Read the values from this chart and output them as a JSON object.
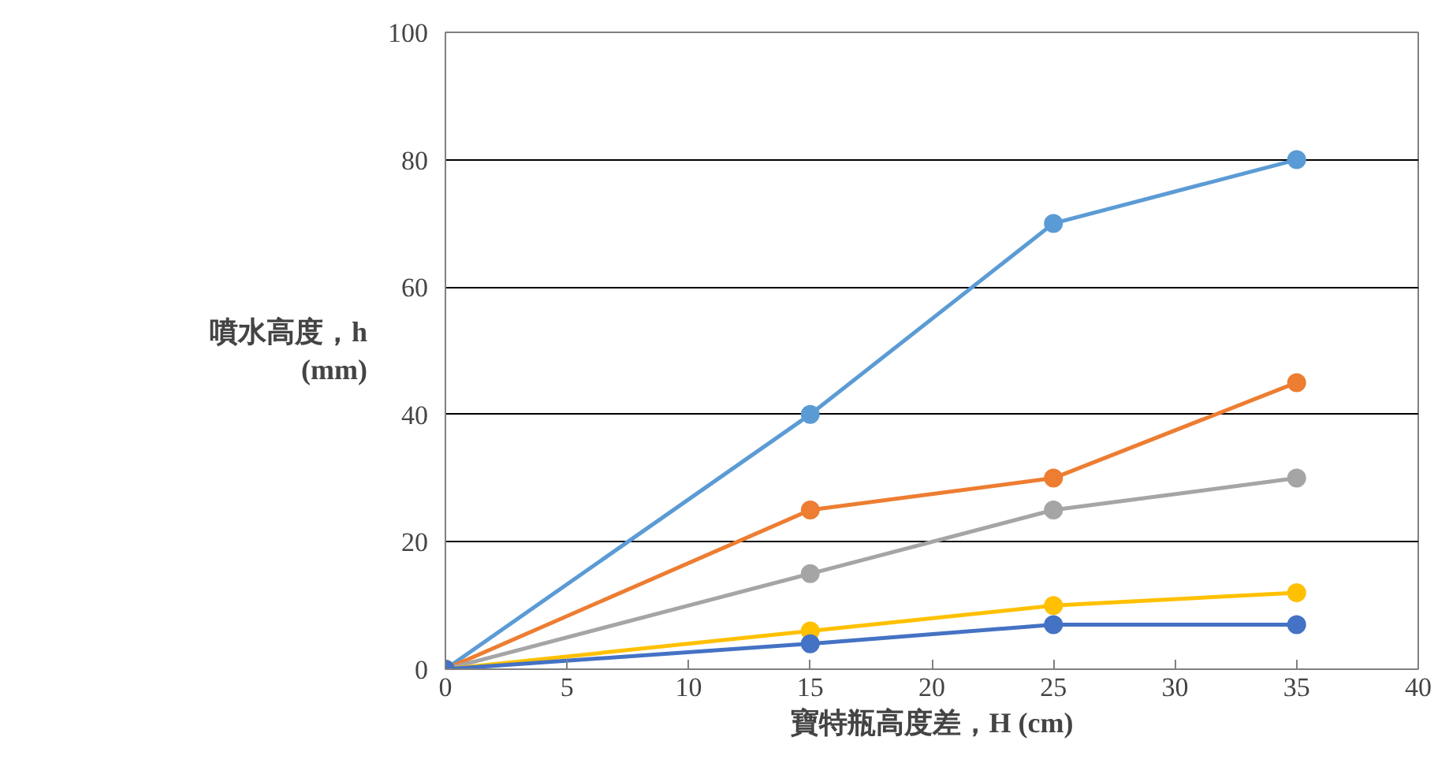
{
  "chart_data": {
    "type": "line",
    "xlabel": "寶特瓶高度差，H (cm)",
    "ylabel": "噴水高度，h\n(mm)",
    "x": [
      0,
      15,
      25,
      35
    ],
    "series": [
      {
        "color": "#5b9bd5",
        "values": [
          0,
          40,
          70,
          80
        ]
      },
      {
        "color": "#ed7d31",
        "values": [
          0,
          25,
          30,
          45
        ]
      },
      {
        "color": "#a5a5a5",
        "values": [
          0,
          15,
          25,
          30
        ]
      },
      {
        "color": "#ffc000",
        "values": [
          0,
          6,
          10,
          12
        ]
      },
      {
        "color": "#4472c4",
        "values": [
          0,
          4,
          7,
          7
        ]
      }
    ],
    "xlim": [
      0,
      40
    ],
    "xticks": [
      0,
      5,
      10,
      15,
      20,
      25,
      30,
      35,
      40
    ],
    "ylim": [
      0,
      100
    ],
    "yticks": [
      0,
      20,
      40,
      60,
      80,
      100
    ],
    "grid": "y",
    "marker": "circle"
  }
}
